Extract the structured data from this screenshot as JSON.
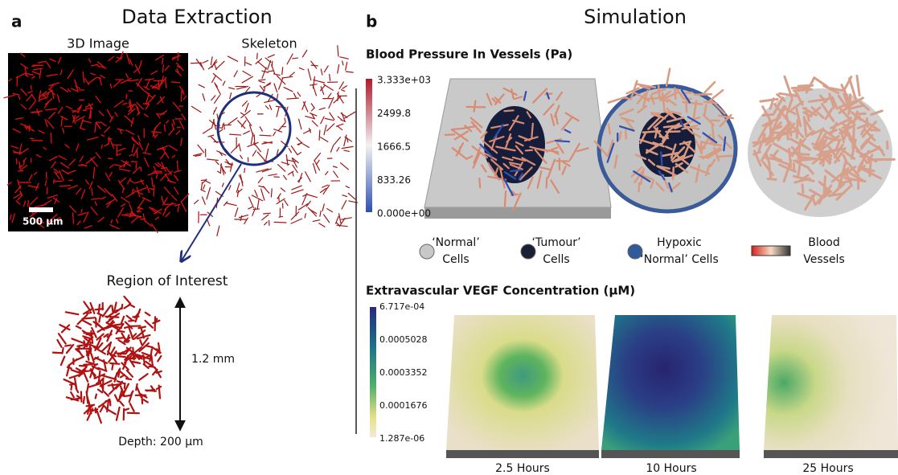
{
  "panel_a": {
    "letter": "a",
    "title": "Data Extraction",
    "image_label": "3D Image",
    "skeleton_label": "Skeleton",
    "scale_bar": "500 µm",
    "roi_title": "Region of Interest",
    "height_label": "1.2 mm",
    "depth_label": "Depth: 200 µm"
  },
  "panel_b": {
    "letter": "b",
    "title": "Simulation",
    "pressure": {
      "title": "Blood Pressure In Vessels (Pa)",
      "colorbar_labels": [
        "3.333e+03",
        "2499.8",
        "1666.5",
        "833.26",
        "0.000e+00"
      ]
    },
    "legend": [
      {
        "lines": [
          "‘Normal’",
          "Cells"
        ]
      },
      {
        "lines": [
          "‘Tumour’",
          "Cells"
        ]
      },
      {
        "lines": [
          "Hypoxic",
          "‘Normal’ Cells"
        ]
      },
      {
        "lines": [
          "Blood",
          "Vessels"
        ]
      }
    ],
    "vegf": {
      "title": "Extravascular VEGF Concentration (µM)",
      "colorbar_labels": [
        "6.717e-04",
        "0.0005028",
        "0.0003352",
        "0.0001676",
        "1.287e-06"
      ],
      "times": [
        "2.5 Hours",
        "10 Hours",
        "25 Hours"
      ]
    }
  }
}
